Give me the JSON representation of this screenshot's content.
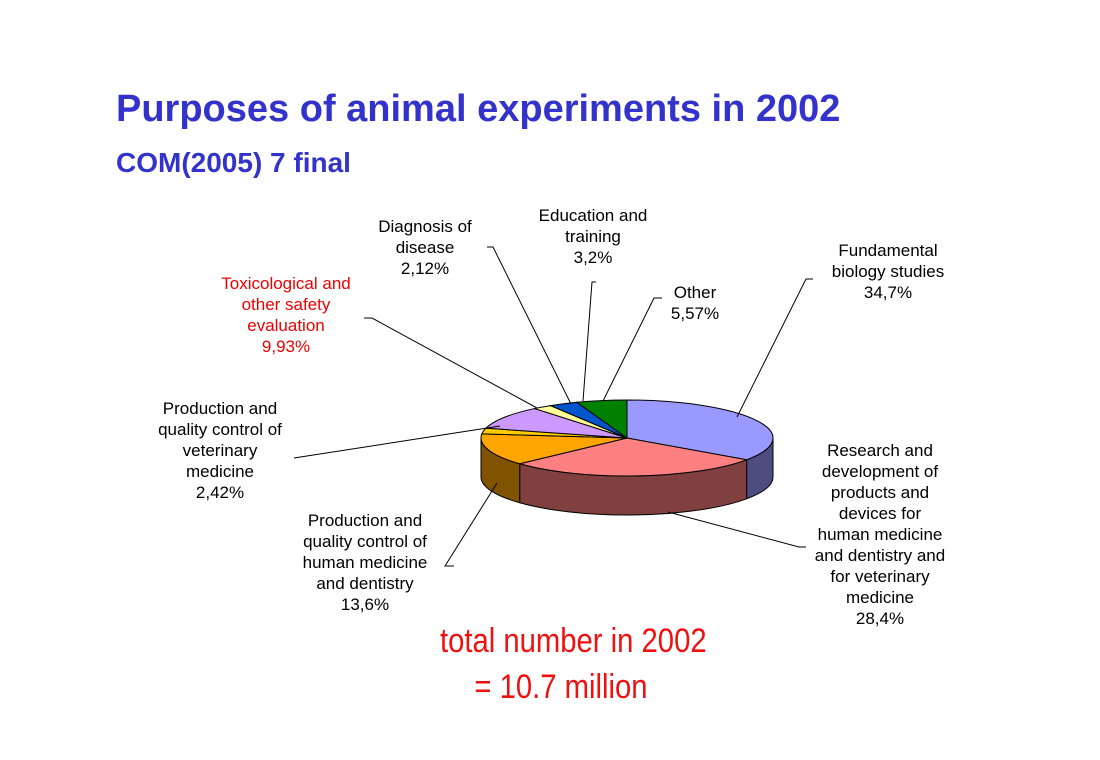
{
  "header": {
    "title": "Purposes of animal experiments in 2002",
    "subtitle": "COM(2005) 7 final"
  },
  "chart_data": {
    "type": "pie",
    "three_d": true,
    "categories": [
      "Fundamental biology studies",
      "Research and development of products and devices for human medicine and dentistry and for veterinary medicine",
      "Production and quality control of human medicine and dentistry",
      "Production and quality control of veterinary medicine",
      "Toxicological and other safety evaluation",
      "Diagnosis of disease",
      "Education and training",
      "Other"
    ],
    "values": [
      34.7,
      28.4,
      13.6,
      2.42,
      9.93,
      2.12,
      3.2,
      5.57
    ],
    "value_labels": [
      "34,7%",
      "28,4%",
      "13,6%",
      "2,42%",
      "9,93%",
      "2,12%",
      "3,2%",
      "5,57%"
    ],
    "colors": [
      "#9999ff",
      "#ff8080",
      "#ffa500",
      "#ffcc00",
      "#cc99ff",
      "#ffff99",
      "#0055cc",
      "#008000"
    ],
    "side_colors": [
      "#4d4d80",
      "#804040",
      "#805300",
      "#806600",
      "#664d80",
      "#80804d",
      "#002a66",
      "#004000"
    ],
    "highlight_color": "#ee0000"
  },
  "labels": {
    "fundamental": [
      "Fundamental",
      "biology studies",
      "34,7%"
    ],
    "research": [
      "Research and",
      "development of",
      "products and",
      "devices for",
      "human medicine",
      "and dentistry and",
      "for veterinary",
      "medicine",
      "28,4%"
    ],
    "prod_human": [
      "Production and",
      "quality control of",
      "human medicine",
      "and dentistry",
      "13,6%"
    ],
    "prod_vet": [
      "Production and",
      "quality control of",
      "veterinary",
      "medicine",
      "2,42%"
    ],
    "toxicological": [
      "Toxicological and",
      "other safety",
      "evaluation",
      "9,93%"
    ],
    "diagnosis": [
      "Diagnosis of",
      "disease",
      "2,12%"
    ],
    "education": [
      "Education and",
      "training",
      "3,2%"
    ],
    "other": [
      "Other",
      "5,57%"
    ]
  },
  "annotation": {
    "line1": "total number in 2002",
    "line2": "= 10.7 million"
  }
}
